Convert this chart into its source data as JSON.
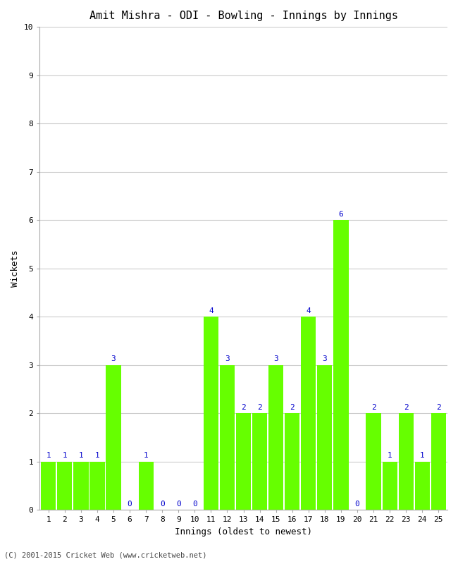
{
  "title": "Amit Mishra - ODI - Bowling - Innings by Innings",
  "xlabel": "Innings (oldest to newest)",
  "ylabel": "Wickets",
  "categories": [
    1,
    2,
    3,
    4,
    5,
    6,
    7,
    8,
    9,
    10,
    11,
    12,
    13,
    14,
    15,
    16,
    17,
    18,
    19,
    20,
    21,
    22,
    23,
    24,
    25
  ],
  "values": [
    1,
    1,
    1,
    1,
    3,
    0,
    1,
    0,
    0,
    0,
    4,
    3,
    2,
    2,
    3,
    2,
    4,
    3,
    6,
    0,
    2,
    1,
    2,
    1,
    2
  ],
  "bar_color": "#66FF00",
  "bar_edge_color": "#66FF00",
  "label_color": "#0000CC",
  "background_color": "#FFFFFF",
  "ylim": [
    0,
    10
  ],
  "yticks": [
    0,
    1,
    2,
    3,
    4,
    5,
    6,
    7,
    8,
    9,
    10
  ],
  "grid_color": "#CCCCCC",
  "title_fontsize": 11,
  "axis_label_fontsize": 9,
  "tick_fontsize": 8,
  "value_label_fontsize": 8,
  "bar_width": 0.92,
  "footer": "(C) 2001-2015 Cricket Web (www.cricketweb.net)"
}
